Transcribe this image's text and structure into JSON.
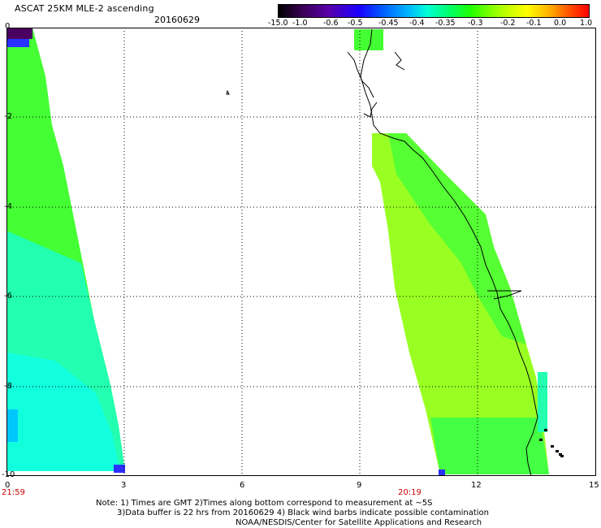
{
  "header": {
    "title": "ASCAT 25KM MLE-2 ascending",
    "date": "20160629"
  },
  "colorbar": {
    "labels": [
      "-15.0",
      "-1.0",
      "-0.6",
      "-0.5",
      "-0.45",
      "-0.4",
      "-0.35",
      "-0.3",
      "-0.2",
      "-0.1",
      "0.0",
      "1.0"
    ],
    "gradient_colors": [
      "#000000",
      "#5a00a8",
      "#1b00ff",
      "#00b8ff",
      "#00ffd6",
      "#1fff00",
      "#7cff00",
      "#ffff00",
      "#ff5a00",
      "#ff0000"
    ]
  },
  "axes": {
    "x_ticks": [
      "0",
      "3",
      "6",
      "9",
      "12",
      "15"
    ],
    "y_ticks": [
      "0",
      "-2",
      "-4",
      "-6",
      "-8",
      "-10"
    ],
    "xlim": [
      0,
      15
    ],
    "ylim": [
      -10,
      0
    ],
    "grid": "dotted"
  },
  "swaths": {
    "times": [
      "21:59",
      "20:19"
    ],
    "colors": {
      "deep_purple": "#4a0060",
      "blue": "#2a30ff",
      "cyan": "#00ffcc",
      "green": "#33ff33",
      "lime": "#88ff22",
      "yellowgreen": "#aaff11"
    }
  },
  "notes": {
    "line1": "Note: 1) Times are GMT 2)Times along bottom correspond to measurement at ~5S",
    "line2": "3)Data buffer is 22 hrs from 20160629 4) Black wind barbs indicate possible contamination",
    "line3": "NOAA/NESDIS/Center for Satellite Applications and Research"
  }
}
